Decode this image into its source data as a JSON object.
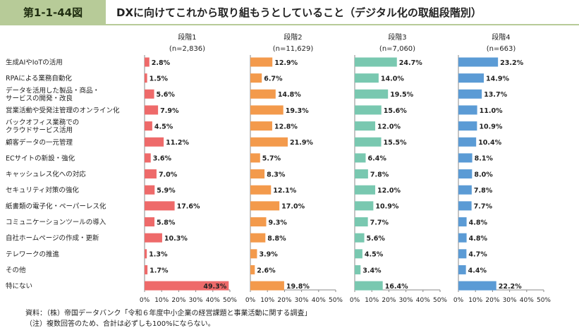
{
  "header": {
    "figure_label": "第1-1-44図",
    "title": "DXに向けてこれから取り組もうとしていること（デジタル化の取組段階別）"
  },
  "colors": {
    "accent": "#b7cb98"
  },
  "chart_data": {
    "type": "bar",
    "orientation": "horizontal",
    "categories": [
      "生成AIやIoTの活用",
      "RPAによる業務自動化",
      "データを活用した製品・商品・\nサービスの開発・改良",
      "営業活動や受発注管理のオンライン化",
      "バックオフィス業務での\nクラウドサービス活用",
      "顧客データの一元管理",
      "ECサイトの新設・強化",
      "キャッシュレス化への対応",
      "セキュリティ対策の強化",
      "紙書類の電子化・ペーパーレス化",
      "コミュニケーションツールの導入",
      "自社ホームページの作成・更新",
      "テレワークの推進",
      "その他",
      "特にない"
    ],
    "panels": [
      {
        "name": "段階1",
        "n": "(n=2,836)",
        "color": "#ee6a6a",
        "values": [
          2.8,
          1.5,
          5.6,
          7.9,
          4.5,
          11.2,
          3.6,
          7.0,
          5.9,
          17.6,
          5.8,
          10.3,
          1.3,
          1.7,
          49.3
        ],
        "labels": [
          "2.8%",
          "1.5%",
          "5.6%",
          "7.9%",
          "4.5%",
          "11.2%",
          "3.6%",
          "7.0%",
          "5.9%",
          "17.6%",
          "5.8%",
          "10.3%",
          "1.3%",
          "1.7%",
          "49.3%"
        ]
      },
      {
        "name": "段階2",
        "n": "(n=11,629)",
        "color": "#f39a4c",
        "values": [
          12.9,
          6.7,
          14.8,
          19.3,
          12.8,
          21.9,
          5.7,
          8.3,
          12.1,
          17.0,
          9.3,
          8.8,
          3.9,
          2.6,
          19.8
        ],
        "labels": [
          "12.9%",
          "6.7%",
          "14.8%",
          "19.3%",
          "12.8%",
          "21.9%",
          "5.7%",
          "8.3%",
          "12.1%",
          "17.0%",
          "9.3%",
          "8.8%",
          "3.9%",
          "2.6%",
          "19.8%"
        ]
      },
      {
        "name": "段階3",
        "n": "(n=7,060)",
        "color": "#79c8b0",
        "values": [
          24.7,
          14.0,
          19.5,
          15.6,
          12.0,
          15.5,
          6.4,
          7.8,
          12.0,
          10.9,
          7.7,
          5.6,
          4.5,
          3.4,
          16.4
        ],
        "labels": [
          "24.7%",
          "14.0%",
          "19.5%",
          "15.6%",
          "12.0%",
          "15.5%",
          "6.4%",
          "7.8%",
          "12.0%",
          "10.9%",
          "7.7%",
          "5.6%",
          "4.5%",
          "3.4%",
          "16.4%"
        ]
      },
      {
        "name": "段階4",
        "n": "(n=663)",
        "color": "#5b9bd5",
        "values": [
          23.2,
          14.9,
          13.7,
          11.0,
          10.9,
          10.4,
          8.1,
          8.0,
          7.8,
          7.7,
          4.8,
          4.8,
          4.7,
          4.4,
          22.2
        ],
        "labels": [
          "23.2%",
          "14.9%",
          "13.7%",
          "11.0%",
          "10.9%",
          "10.4%",
          "8.1%",
          "8.0%",
          "7.8%",
          "7.7%",
          "4.8%",
          "4.8%",
          "4.7%",
          "4.4%",
          "22.2%"
        ]
      }
    ],
    "xlim": [
      0,
      50
    ],
    "xticks": [
      "0%",
      "10%",
      "20%",
      "30%",
      "40%",
      "50%"
    ],
    "grid": false
  },
  "source": "資料：（株）帝国データバンク「令和６年度中小企業の経営課題と事業活動に関する調査」",
  "note": "（注）複数回答のため、合計は必ずしも100%にならない。"
}
